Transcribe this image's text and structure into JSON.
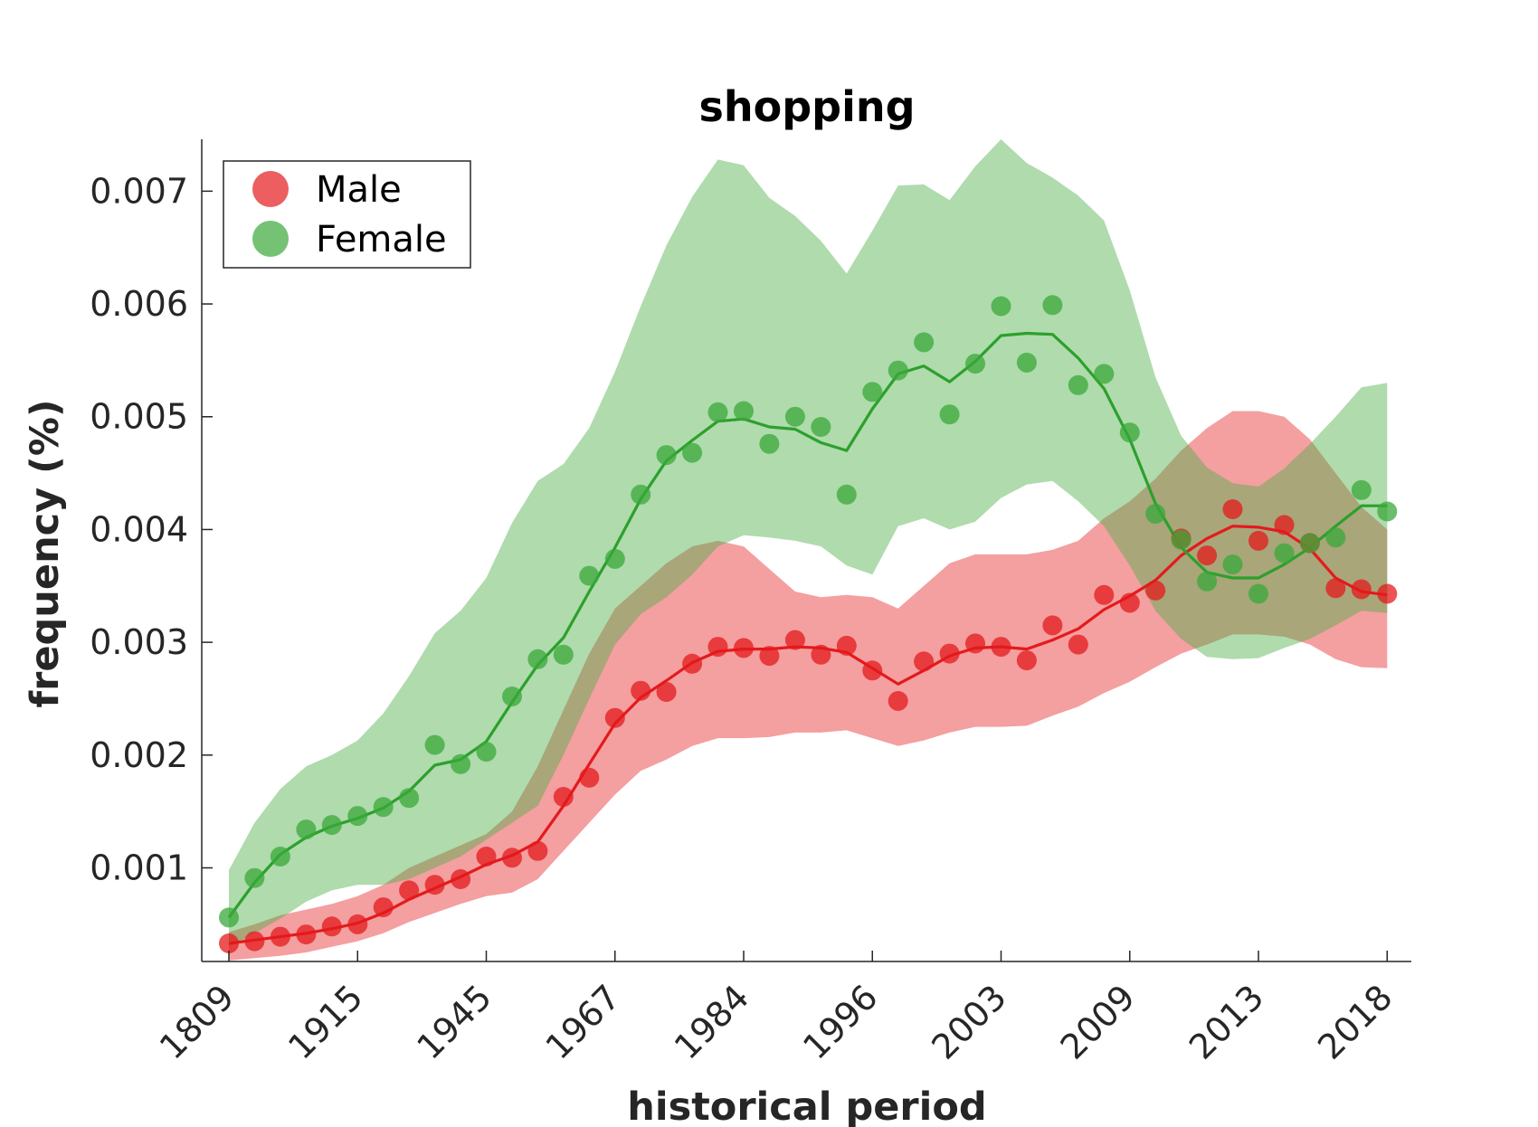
{
  "chart_data": {
    "type": "line",
    "title": "shopping",
    "xlabel": "historical period",
    "ylabel": "frequency (%)",
    "x_tick_labels": [
      "1809",
      "1915",
      "1945",
      "1967",
      "1984",
      "1996",
      "2003",
      "2009",
      "2013",
      "2018"
    ],
    "y_ticks": [
      0.001,
      0.002,
      0.003,
      0.004,
      0.005,
      0.006,
      0.007
    ],
    "y_tick_labels": [
      "0.001",
      "0.002",
      "0.003",
      "0.004",
      "0.005",
      "0.006",
      "0.007"
    ],
    "ylim": [
      0.00017,
      0.00746
    ],
    "x_index_range": [
      -1,
      45
    ],
    "grid": false,
    "legend_position": "top-left",
    "series": [
      {
        "name": "Male",
        "color": "#e41a1c",
        "dot_color": "#e41a1c",
        "band_color": "#e41a1c",
        "points": [
          0.00033,
          0.00035,
          0.00039,
          0.00041,
          0.00048,
          0.0005,
          0.00065,
          0.0008,
          0.00085,
          0.0009,
          0.0011,
          0.00109,
          0.00115,
          0.00163,
          0.0018,
          0.00233,
          0.00257,
          0.00256,
          0.00281,
          0.00296,
          0.00295,
          0.00288,
          0.00302,
          0.00289,
          0.00297,
          0.00275,
          0.00248,
          0.00283,
          0.0029,
          0.00299,
          0.00296,
          0.00284,
          0.00315,
          0.00298,
          0.00342,
          0.00335,
          0.00346,
          0.00392,
          0.00377,
          0.00418,
          0.0039,
          0.00404,
          0.00388,
          0.00348,
          0.00347,
          0.00343
        ],
        "smooth": [
          0.00033,
          0.00036,
          0.00039,
          0.00042,
          0.00046,
          0.00051,
          0.0006,
          0.00072,
          0.00082,
          0.00092,
          0.00103,
          0.00111,
          0.00123,
          0.00155,
          0.00192,
          0.00228,
          0.00251,
          0.00266,
          0.00282,
          0.00292,
          0.00294,
          0.00294,
          0.00296,
          0.00295,
          0.00291,
          0.00277,
          0.00263,
          0.00275,
          0.00288,
          0.00295,
          0.00296,
          0.00294,
          0.00302,
          0.00312,
          0.00329,
          0.00341,
          0.00355,
          0.00377,
          0.00392,
          0.00403,
          0.00402,
          0.00398,
          0.00383,
          0.00357,
          0.00345,
          0.00342
        ],
        "upper": [
          0.00043,
          0.0005,
          0.00058,
          0.00063,
          0.00068,
          0.00075,
          0.00085,
          0.001,
          0.0011,
          0.0012,
          0.0013,
          0.0015,
          0.0019,
          0.0024,
          0.0029,
          0.0033,
          0.0035,
          0.0037,
          0.00385,
          0.0039,
          0.00385,
          0.00365,
          0.00345,
          0.0034,
          0.00342,
          0.0034,
          0.0033,
          0.0035,
          0.0037,
          0.00378,
          0.00378,
          0.00378,
          0.00382,
          0.0039,
          0.0041,
          0.00425,
          0.00445,
          0.0047,
          0.0049,
          0.00505,
          0.00505,
          0.005,
          0.0048,
          0.0045,
          0.0042,
          0.004
        ],
        "lower": [
          0.00018,
          0.0002,
          0.00022,
          0.00025,
          0.0003,
          0.00035,
          0.00042,
          0.00052,
          0.0006,
          0.00068,
          0.00075,
          0.00078,
          0.0009,
          0.00115,
          0.0014,
          0.00165,
          0.00186,
          0.00196,
          0.00208,
          0.00215,
          0.00215,
          0.00216,
          0.0022,
          0.0022,
          0.00222,
          0.00215,
          0.00208,
          0.00213,
          0.0022,
          0.00225,
          0.00225,
          0.00226,
          0.00235,
          0.00243,
          0.00255,
          0.00265,
          0.00278,
          0.0029,
          0.00298,
          0.00307,
          0.00307,
          0.00305,
          0.00298,
          0.00285,
          0.00278,
          0.00277
        ]
      },
      {
        "name": "Female",
        "color": "#2ca02c",
        "dot_color": "#3aa83a",
        "band_color": "#4daf4a",
        "points": [
          0.00056,
          0.00091,
          0.0011,
          0.00134,
          0.00138,
          0.00146,
          0.00154,
          0.00162,
          0.00209,
          0.00192,
          0.00203,
          0.00252,
          0.00285,
          0.00289,
          0.00359,
          0.00374,
          0.00431,
          0.00466,
          0.00468,
          0.00504,
          0.00505,
          0.00476,
          0.005,
          0.00491,
          0.00431,
          0.00522,
          0.00541,
          0.00566,
          0.00502,
          0.00547,
          0.00598,
          0.00548,
          0.00599,
          0.00528,
          0.00538,
          0.00486,
          0.00414,
          0.00391,
          0.00354,
          0.00369,
          0.00343,
          0.00379,
          0.00388,
          0.00393,
          0.00435,
          0.00416
        ],
        "smooth": [
          0.00056,
          0.00087,
          0.00112,
          0.00127,
          0.00137,
          0.00144,
          0.00153,
          0.00168,
          0.00191,
          0.00196,
          0.00212,
          0.00247,
          0.0028,
          0.00304,
          0.00345,
          0.00384,
          0.00427,
          0.00461,
          0.00479,
          0.00496,
          0.00498,
          0.00491,
          0.00489,
          0.00477,
          0.0047,
          0.00507,
          0.00538,
          0.00545,
          0.00531,
          0.00549,
          0.00572,
          0.00574,
          0.00573,
          0.00552,
          0.00525,
          0.0048,
          0.00423,
          0.00384,
          0.00362,
          0.00357,
          0.00357,
          0.00369,
          0.00384,
          0.00403,
          0.00421,
          0.00421
        ],
        "upper": [
          0.00098,
          0.0014,
          0.0017,
          0.0019,
          0.002,
          0.00213,
          0.00237,
          0.0027,
          0.00308,
          0.00328,
          0.00357,
          0.00406,
          0.00443,
          0.00458,
          0.0049,
          0.0054,
          0.00598,
          0.00652,
          0.00695,
          0.00728,
          0.00723,
          0.00694,
          0.00678,
          0.00656,
          0.00627,
          0.00665,
          0.00705,
          0.00706,
          0.00692,
          0.00722,
          0.00746,
          0.00725,
          0.00712,
          0.00696,
          0.00674,
          0.00612,
          0.00535,
          0.00483,
          0.00455,
          0.00441,
          0.00438,
          0.00454,
          0.00476,
          0.005,
          0.00526,
          0.0053
        ],
        "lower": [
          0.0003,
          0.00042,
          0.00055,
          0.0007,
          0.0008,
          0.00085,
          0.00085,
          0.0009,
          0.001,
          0.0011,
          0.00125,
          0.0014,
          0.00155,
          0.002,
          0.0025,
          0.00298,
          0.00325,
          0.0034,
          0.0036,
          0.00385,
          0.00395,
          0.00393,
          0.0039,
          0.00385,
          0.00368,
          0.0036,
          0.00403,
          0.0041,
          0.004,
          0.00407,
          0.00428,
          0.0044,
          0.00443,
          0.00425,
          0.00403,
          0.00368,
          0.00328,
          0.00303,
          0.00287,
          0.00285,
          0.00286,
          0.00295,
          0.00303,
          0.00315,
          0.00328,
          0.00326
        ]
      }
    ]
  }
}
